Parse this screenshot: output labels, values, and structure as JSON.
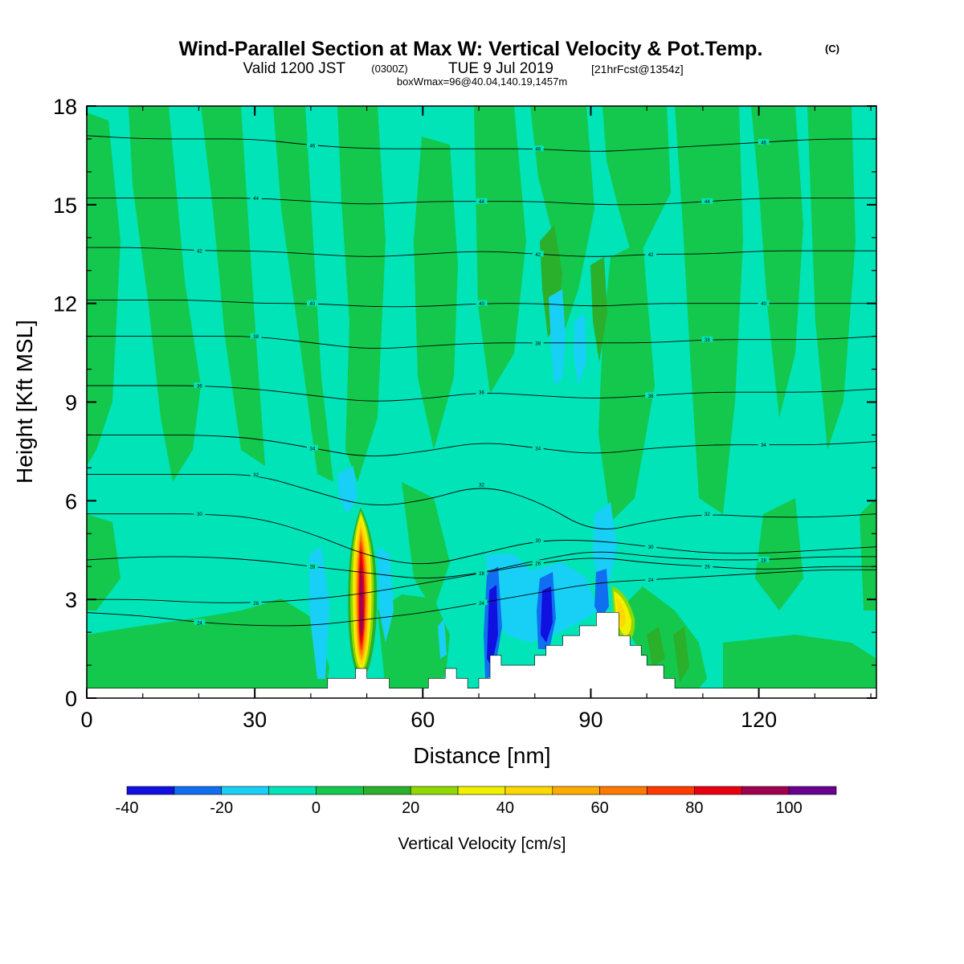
{
  "titles": {
    "main": "Wind-Parallel Section at Max W: Vertical Velocity & Pot.Temp.",
    "mark": "(C)",
    "valid_prefix": "Valid 1200 JST",
    "valid_utc": "(0300Z)",
    "valid_date": "TUE 9 Jul 2019",
    "forecast": "[21hrFcst@1354z]",
    "box": "boxWmax=96@40.04,140.19,1457m"
  },
  "chart_data": {
    "type": "contour-section",
    "xlabel": "Distance [nm]",
    "ylabel": "Height [Kft MSL]",
    "xlim": [
      0,
      141
    ],
    "ylim": [
      0,
      18
    ],
    "x_ticks": [
      0,
      30,
      60,
      90,
      120
    ],
    "y_ticks": [
      0,
      3,
      6,
      9,
      12,
      15,
      18
    ],
    "colorbar": {
      "title": "Vertical Velocity [cm/s]",
      "bounds": [
        -40,
        -30,
        -20,
        -10,
        0,
        10,
        20,
        30,
        40,
        50,
        60,
        70,
        80,
        90,
        100,
        110
      ],
      "labels": [
        "-40",
        "-20",
        "0",
        "20",
        "40",
        "60",
        "80",
        "100"
      ],
      "label_values": [
        -40,
        -20,
        0,
        20,
        40,
        60,
        80,
        100
      ],
      "colors": [
        "#1010e0",
        "#0f6ff0",
        "#18d0f5",
        "#00e4b8",
        "#14c84e",
        "#2ab02a",
        "#90d800",
        "#f0f000",
        "#ffd800",
        "#ffaa00",
        "#ff7800",
        "#ff3a00",
        "#e80010",
        "#a00050",
        "#6a0090"
      ]
    },
    "vertical_velocity_features": [
      {
        "x": 48.5,
        "ymin": 0.6,
        "ymax": 5.7,
        "peak_cms": 96,
        "kind": "updraft"
      },
      {
        "x": 94.5,
        "ymin": 2.0,
        "ymax": 3.4,
        "peak_cms": 40,
        "kind": "updraft"
      },
      {
        "x": 72.7,
        "ymin": 0.5,
        "ymax": 3.9,
        "peak_cms": -40,
        "kind": "downdraft"
      },
      {
        "x": 81.8,
        "ymin": 1.6,
        "ymax": 3.8,
        "peak_cms": -40,
        "kind": "downdraft"
      },
      {
        "x": 91.3,
        "ymin": 2.6,
        "ymax": 4.2,
        "peak_cms": -30,
        "kind": "downdraft"
      },
      {
        "x": 84.5,
        "ymin": 9.5,
        "ymax": 12.0,
        "peak_cms": -20,
        "kind": "downdraft"
      }
    ],
    "terrain": [
      [
        0,
        0.3
      ],
      [
        43,
        0.3
      ],
      [
        43,
        0.6
      ],
      [
        48,
        0.6
      ],
      [
        48,
        0.9
      ],
      [
        50,
        0.9
      ],
      [
        50,
        0.6
      ],
      [
        54,
        0.6
      ],
      [
        54,
        0.3
      ],
      [
        61,
        0.3
      ],
      [
        61,
        0.6
      ],
      [
        64,
        0.6
      ],
      [
        64,
        0.9
      ],
      [
        66,
        0.9
      ],
      [
        66,
        0.6
      ],
      [
        68,
        0.6
      ],
      [
        68,
        0.3
      ],
      [
        70,
        0.3
      ],
      [
        70,
        0.6
      ],
      [
        72,
        0.6
      ],
      [
        72,
        1.3
      ],
      [
        74,
        1.3
      ],
      [
        74,
        1.0
      ],
      [
        80,
        1.0
      ],
      [
        80,
        1.3
      ],
      [
        82,
        1.3
      ],
      [
        82,
        1.6
      ],
      [
        85,
        1.6
      ],
      [
        85,
        1.9
      ],
      [
        88,
        1.9
      ],
      [
        88,
        2.2
      ],
      [
        91,
        2.2
      ],
      [
        91,
        2.6
      ],
      [
        95,
        2.6
      ],
      [
        95,
        1.9
      ],
      [
        97,
        1.9
      ],
      [
        97,
        1.6
      ],
      [
        99,
        1.6
      ],
      [
        99,
        1.3
      ],
      [
        100,
        1.3
      ],
      [
        100,
        1.0
      ],
      [
        103,
        1.0
      ],
      [
        103,
        0.6
      ],
      [
        105,
        0.6
      ],
      [
        105,
        0.3
      ],
      [
        141,
        0.3
      ]
    ],
    "theta_levels": [
      {
        "label": "24",
        "heights": [
          2.6,
          2.5,
          2.3,
          2.2,
          2.2,
          2.4,
          2.6,
          2.9,
          3.2,
          3.5,
          3.6,
          3.7,
          3.8,
          3.9,
          3.9
        ]
      },
      {
        "label": "26",
        "heights": [
          3.0,
          3.0,
          2.9,
          2.9,
          3.0,
          3.2,
          3.5,
          3.8,
          4.1,
          4.3,
          4.1,
          4.0,
          3.9,
          4.0,
          4.0
        ]
      },
      {
        "label": "28",
        "heights": [
          4.2,
          4.3,
          4.3,
          4.2,
          4.0,
          3.8,
          3.6,
          3.8,
          4.2,
          4.5,
          4.3,
          4.2,
          4.2,
          4.3,
          4.3
        ]
      },
      {
        "label": "30",
        "heights": [
          5.6,
          5.6,
          5.6,
          5.5,
          5.0,
          4.3,
          4.0,
          4.4,
          4.8,
          4.8,
          4.6,
          4.4,
          4.4,
          4.5,
          4.6
        ]
      },
      {
        "label": "32",
        "heights": [
          6.8,
          6.8,
          6.8,
          6.8,
          6.3,
          5.8,
          6.0,
          6.5,
          6.0,
          5.0,
          5.4,
          5.6,
          5.5,
          5.5,
          5.6
        ]
      },
      {
        "label": "34",
        "heights": [
          8.0,
          8.0,
          8.0,
          7.9,
          7.6,
          7.3,
          7.5,
          7.8,
          7.6,
          7.4,
          7.6,
          7.7,
          7.7,
          7.7,
          7.8
        ]
      },
      {
        "label": "36",
        "heights": [
          9.5,
          9.5,
          9.5,
          9.4,
          9.2,
          9.0,
          9.1,
          9.3,
          9.2,
          9.1,
          9.2,
          9.3,
          9.3,
          9.3,
          9.4
        ]
      },
      {
        "label": "38",
        "heights": [
          11.0,
          11.0,
          11.0,
          11.0,
          10.8,
          10.6,
          10.7,
          10.8,
          10.8,
          10.8,
          10.8,
          10.9,
          10.9,
          10.9,
          11.0
        ]
      },
      {
        "label": "40",
        "heights": [
          12.1,
          12.1,
          12.1,
          12.0,
          12.0,
          11.9,
          11.9,
          12.0,
          12.0,
          11.9,
          12.0,
          12.0,
          12.0,
          12.0,
          12.0
        ]
      },
      {
        "label": "42",
        "heights": [
          13.7,
          13.7,
          13.6,
          13.6,
          13.5,
          13.4,
          13.5,
          13.6,
          13.5,
          13.4,
          13.5,
          13.5,
          13.6,
          13.6,
          13.6
        ]
      },
      {
        "label": "44",
        "heights": [
          15.2,
          15.2,
          15.2,
          15.2,
          15.1,
          15.0,
          15.1,
          15.1,
          15.1,
          15.0,
          15.0,
          15.1,
          15.2,
          15.2,
          15.2
        ]
      },
      {
        "label": "46",
        "heights": [
          17.1,
          17.0,
          17.0,
          17.0,
          16.8,
          16.7,
          16.7,
          16.7,
          16.7,
          16.6,
          16.7,
          16.8,
          16.9,
          17.0,
          17.0
        ]
      }
    ]
  }
}
